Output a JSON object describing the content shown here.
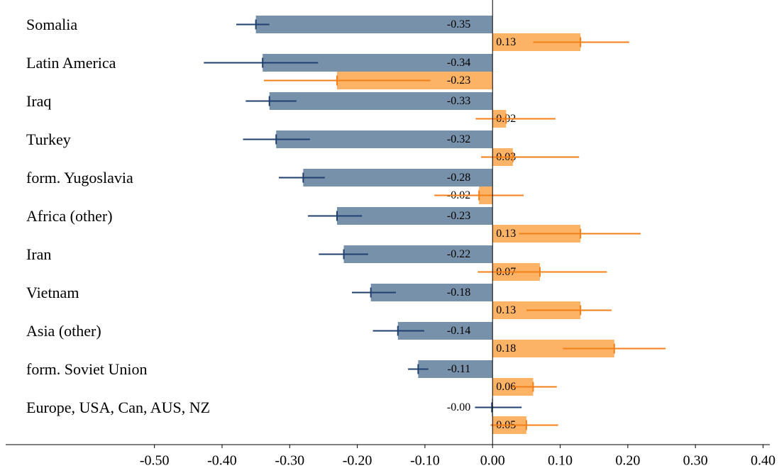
{
  "chart_data": {
    "type": "bar",
    "orientation": "horizontal",
    "categories": [
      "Somalia",
      "Latin America",
      "Iraq",
      "Turkey",
      "form. Yugoslavia",
      "Africa (other)",
      "Iran",
      "Vietnam",
      "Asia (other)",
      "form. Soviet Union",
      "Europe, USA, Can, AUS, NZ"
    ],
    "series": [
      {
        "color": "#7891aa",
        "error_color": "#1f3f6e",
        "values": [
          -0.35,
          -0.34,
          -0.33,
          -0.32,
          -0.28,
          -0.23,
          -0.22,
          -0.18,
          -0.14,
          -0.11,
          -0.001
        ],
        "value_labels": [
          "-0.35",
          "-0.34",
          "-0.33",
          "-0.32",
          "-0.28",
          "-0.23",
          "-0.22",
          "-0.18",
          "-0.14",
          "-0.11",
          "-0.00"
        ],
        "ci_low": [
          -0.379,
          -0.427,
          -0.365,
          -0.369,
          -0.316,
          -0.273,
          -0.257,
          -0.208,
          -0.177,
          -0.125,
          -0.026
        ],
        "ci_high": [
          -0.33,
          -0.258,
          -0.29,
          -0.27,
          -0.248,
          -0.193,
          -0.184,
          -0.143,
          -0.101,
          -0.095,
          0.043
        ]
      },
      {
        "color": "#fdb366",
        "error_color": "#f57f17",
        "values": [
          0.13,
          -0.23,
          0.02,
          0.03,
          -0.02,
          0.13,
          0.07,
          0.13,
          0.18,
          0.06,
          0.05
        ],
        "value_labels": [
          "0.13",
          "-0.23",
          "0.02",
          "0.03",
          "-0.02",
          "0.13",
          "0.07",
          "0.13",
          "0.18",
          "0.06",
          "0.05"
        ],
        "ci_low": [
          0.06,
          -0.338,
          -0.025,
          -0.017,
          -0.086,
          0.039,
          -0.022,
          0.05,
          0.104,
          0.028,
          -0.003
        ],
        "ci_high": [
          0.202,
          -0.092,
          0.093,
          0.128,
          0.046,
          0.219,
          0.169,
          0.176,
          0.256,
          0.095,
          0.097
        ]
      }
    ],
    "xlim": [
      -0.72,
      0.41
    ],
    "xticks": [
      {
        "value": -0.5,
        "label": "-0.50"
      },
      {
        "value": -0.4,
        "label": "-0.40"
      },
      {
        "value": -0.3,
        "label": "-0.30"
      },
      {
        "value": -0.2,
        "label": "-0.20"
      },
      {
        "value": -0.1,
        "label": "-0.10"
      },
      {
        "value": 0,
        "label": "0.00"
      },
      {
        "value": 0.1,
        "label": "0.10"
      },
      {
        "value": 0.2,
        "label": "0.20"
      },
      {
        "value": 0.3,
        "label": "0.30"
      },
      {
        "value": 0.4,
        "label": "0.40"
      }
    ]
  }
}
